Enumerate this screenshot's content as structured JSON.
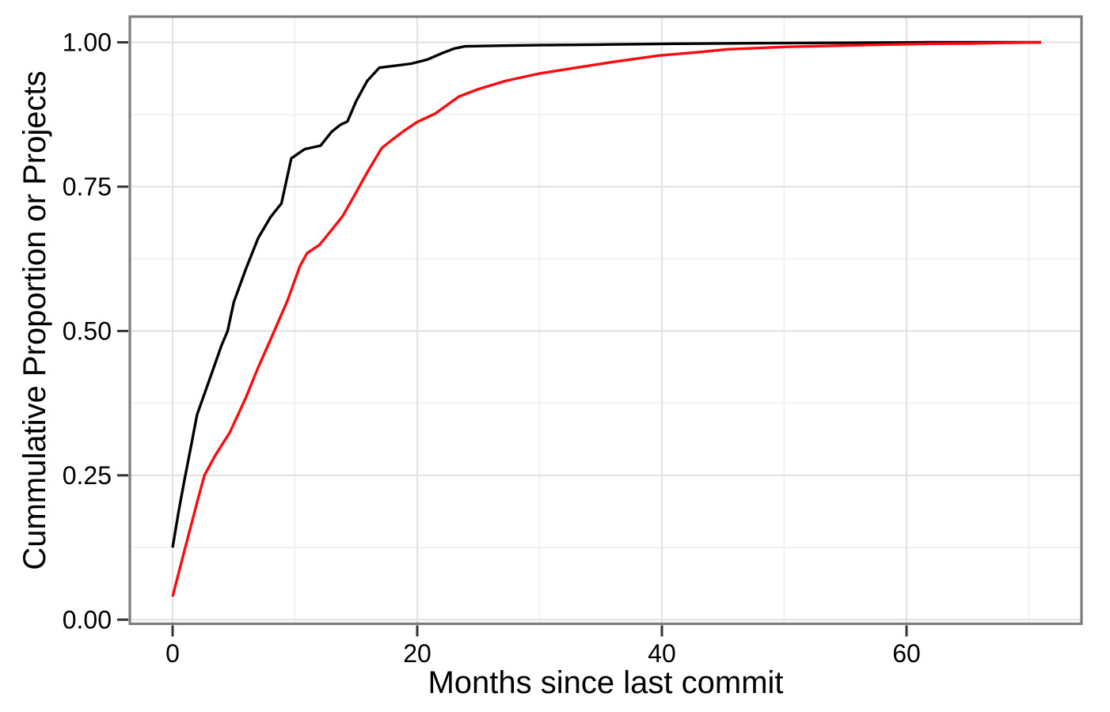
{
  "figure": {
    "background": "#ffffff",
    "panel_border_color": "#7c7c7c",
    "tick_color": "#333333",
    "text_color": "#000000"
  },
  "chart_data": {
    "type": "line",
    "title": "",
    "xlabel": "Months since last commit",
    "ylabel": "Cummulative Proportion or Projects",
    "legend": "none",
    "grid": {
      "visible": true,
      "major_color": "#e3e3e3",
      "minor_color": "#f1f1f1"
    },
    "x_axis": {
      "range": [
        -3.5,
        74.3
      ],
      "ticks": [
        {
          "value": 0,
          "label": "0"
        },
        {
          "value": 20,
          "label": "20"
        },
        {
          "value": 40,
          "label": "40"
        },
        {
          "value": 60,
          "label": "60"
        }
      ],
      "minor": [
        10,
        30,
        50,
        70
      ]
    },
    "y_axis": {
      "range": [
        -0.007,
        1.045
      ],
      "ticks": [
        {
          "value": 0.0,
          "label": "0.00"
        },
        {
          "value": 0.25,
          "label": "0.25"
        },
        {
          "value": 0.5,
          "label": "0.50"
        },
        {
          "value": 0.75,
          "label": "0.75"
        },
        {
          "value": 1.0,
          "label": "1.00"
        }
      ],
      "minor": [
        0.125,
        0.375,
        0.625,
        0.875
      ]
    },
    "series": [
      {
        "name": "black",
        "color": "#000000",
        "points": [
          [
            0,
            0.125
          ],
          [
            0.5,
            0.188
          ],
          [
            1,
            0.245
          ],
          [
            1.5,
            0.3
          ],
          [
            2,
            0.355
          ],
          [
            3,
            0.415
          ],
          [
            4,
            0.475
          ],
          [
            4.5,
            0.5
          ],
          [
            5,
            0.55
          ],
          [
            6,
            0.608
          ],
          [
            7,
            0.661
          ],
          [
            8,
            0.697
          ],
          [
            8.9,
            0.721
          ],
          [
            9.7,
            0.799
          ],
          [
            10.8,
            0.815
          ],
          [
            12.1,
            0.821
          ],
          [
            13,
            0.845
          ],
          [
            13.7,
            0.857
          ],
          [
            14.3,
            0.863
          ],
          [
            15,
            0.898
          ],
          [
            15.9,
            0.933
          ],
          [
            16.9,
            0.956
          ],
          [
            18,
            0.959
          ],
          [
            19.5,
            0.963
          ],
          [
            20.8,
            0.97
          ],
          [
            22,
            0.981
          ],
          [
            23,
            0.989
          ],
          [
            23.9,
            0.993
          ],
          [
            26,
            0.994
          ],
          [
            30,
            0.995
          ],
          [
            35,
            0.996
          ],
          [
            41,
            0.9975
          ],
          [
            48,
            0.9985
          ],
          [
            55,
            0.9992
          ],
          [
            62,
            1
          ],
          [
            71,
            1
          ]
        ]
      },
      {
        "name": "red",
        "color": "#fb0a0f",
        "points": [
          [
            0,
            0.04
          ],
          [
            1,
            0.122
          ],
          [
            2,
            0.203
          ],
          [
            2.6,
            0.25
          ],
          [
            3.5,
            0.285
          ],
          [
            4.7,
            0.325
          ],
          [
            6,
            0.385
          ],
          [
            7,
            0.437
          ],
          [
            7.9,
            0.48
          ],
          [
            9.4,
            0.553
          ],
          [
            10.4,
            0.612
          ],
          [
            11,
            0.635
          ],
          [
            12,
            0.649
          ],
          [
            13,
            0.675
          ],
          [
            13.9,
            0.699
          ],
          [
            15,
            0.74
          ],
          [
            16,
            0.778
          ],
          [
            17.1,
            0.817
          ],
          [
            18,
            0.832
          ],
          [
            19,
            0.848
          ],
          [
            20,
            0.862
          ],
          [
            21.5,
            0.877
          ],
          [
            23.4,
            0.906
          ],
          [
            25,
            0.919
          ],
          [
            27.2,
            0.933
          ],
          [
            30,
            0.946
          ],
          [
            33,
            0.956
          ],
          [
            36,
            0.966
          ],
          [
            39.7,
            0.977
          ],
          [
            43,
            0.983
          ],
          [
            45.4,
            0.988
          ],
          [
            50,
            0.992
          ],
          [
            54,
            0.994
          ],
          [
            58,
            0.996
          ],
          [
            62,
            0.9975
          ],
          [
            65,
            0.998
          ],
          [
            68,
            0.999
          ],
          [
            71,
            1
          ]
        ]
      }
    ]
  }
}
